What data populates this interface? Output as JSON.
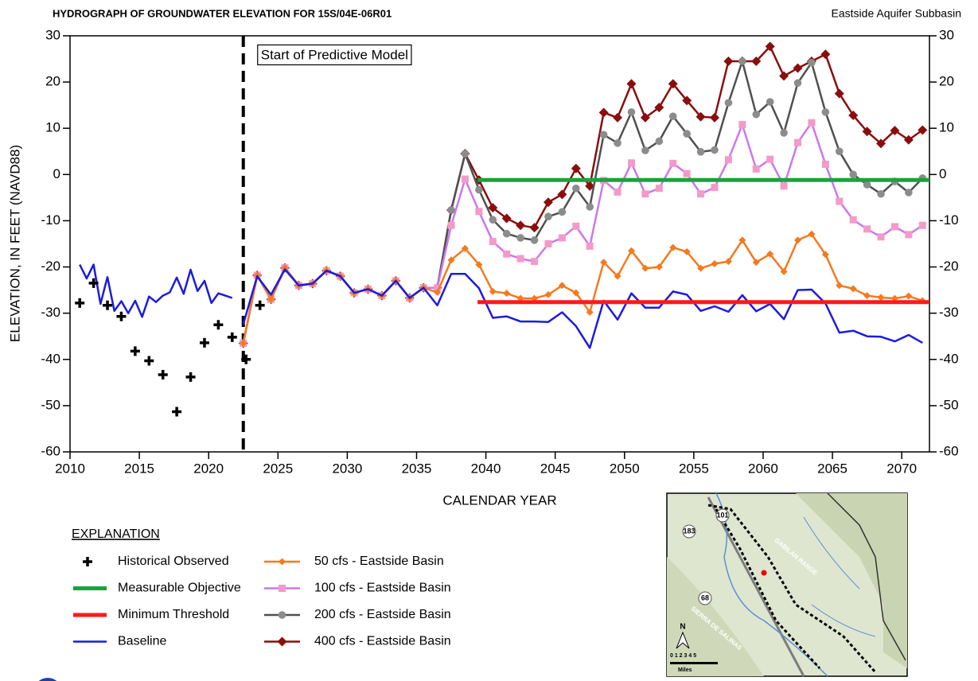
{
  "chart_data": {
    "type": "line",
    "title": "HYDROGRAPH OF GROUNDWATER ELEVATION FOR 15S/04E-06R01",
    "subtitle": "Eastside Aquifer Subbasin",
    "x_label": "CALENDAR YEAR",
    "y_label": "ELEVATION, IN FEET (NAVD88)",
    "xlim": [
      2010,
      2072
    ],
    "xticks": [
      2010,
      2015,
      2020,
      2025,
      2030,
      2035,
      2040,
      2045,
      2050,
      2055,
      2060,
      2065,
      2070
    ],
    "ylim": [
      -60,
      30
    ],
    "yticks": [
      -60,
      -50,
      -40,
      -30,
      -20,
      -10,
      0,
      10,
      20,
      30
    ],
    "y2lim": [
      -60,
      30
    ],
    "y2ticks": [
      -60,
      -50,
      -40,
      -30,
      -20,
      -10,
      0,
      10,
      20,
      30
    ],
    "grid": false,
    "legend_title": "EXPLANATION",
    "annotations": [
      {
        "text": "Start of Predictive Model",
        "x": 2022.5
      }
    ],
    "series": [
      {
        "name": "Historical Observed",
        "color": "#000000",
        "marker": "plus",
        "line_width": 0,
        "x": [
          2010.7,
          2011.7,
          2012.7,
          2013.7,
          2014.7,
          2015.7,
          2016.7,
          2017.7,
          2018.7,
          2019.7,
          2020.7,
          2021.7,
          2022.7,
          2023.7
        ],
        "values": [
          -27.8,
          -23.5,
          -28.3,
          -30.7,
          -38.2,
          -40.3,
          -43.3,
          -51.3,
          -43.8,
          -36.4,
          -32.5,
          -35.2,
          -40,
          -28.3
        ]
      },
      {
        "name": "Measurable Objective",
        "color": "#1aa33c",
        "marker": "none",
        "line_width": 5,
        "x": [
          2039.4,
          2072
        ],
        "values": [
          -1.2,
          -1.2
        ]
      },
      {
        "name": "Minimum Threshold",
        "color": "#ff1a1a",
        "marker": "none",
        "line_width": 5,
        "x": [
          2039.4,
          2072
        ],
        "values": [
          -27.6,
          -27.6
        ]
      },
      {
        "name": "Baseline",
        "color": "#1c1cde",
        "marker": "none",
        "line_width": 2.5,
        "x": [
          2010.7,
          2011.2,
          2011.7,
          2012.2,
          2012.7,
          2013.2,
          2013.7,
          2014.2,
          2014.7,
          2015.2,
          2015.7,
          2016.2,
          2016.7,
          2017.2,
          2017.7,
          2018.2,
          2018.7,
          2019.2,
          2019.7,
          2020.2,
          2020.7,
          2021.2,
          2021.7,
          2022.0,
          2022.5,
          2023.5,
          2024.5,
          2025.5,
          2026.5,
          2027.5,
          2028.5,
          2029.5,
          2030.5,
          2031.5,
          2032.5,
          2033.5,
          2034.5,
          2035.5,
          2036.5,
          2037.5,
          2038.5,
          2039.5,
          2040.5,
          2041.5,
          2042.5,
          2043.5,
          2044.5,
          2045.5,
          2046.5,
          2047.5,
          2048.5,
          2049.5,
          2050.5,
          2051.5,
          2052.5,
          2053.5,
          2054.5,
          2055.5,
          2056.5,
          2057.5,
          2058.5,
          2059.5,
          2060.5,
          2061.5,
          2062.5,
          2063.5,
          2064.5,
          2065.5,
          2066.5,
          2067.5,
          2068.5,
          2069.5,
          2070.5,
          2071.5
        ],
        "values": [
          -19.5,
          -22.5,
          -19.5,
          -28,
          -22.2,
          -29.5,
          -27.4,
          -30,
          -27.3,
          -30.8,
          -26.4,
          -27.6,
          -26.2,
          -25.5,
          -22.3,
          -25.8,
          -20.6,
          -25.2,
          -23,
          -27.8,
          -25.7,
          -26.2,
          -26.7,
          null,
          -32.4,
          -22,
          -26,
          -20.5,
          -24,
          -23.6,
          -20.8,
          -22,
          -25.6,
          -24.8,
          -26.2,
          -23,
          -26.7,
          -24.5,
          -28.3,
          -21.5,
          -21.5,
          -24.6,
          -31,
          -30.7,
          -31.8,
          -31.8,
          -31.9,
          -29.8,
          -32.8,
          -37.5,
          -27.3,
          -31.4,
          -25.7,
          -28.8,
          -28.8,
          -25.3,
          -26,
          -29.5,
          -28.5,
          -29.7,
          -26.1,
          -29.6,
          -28,
          -31.3,
          -25,
          -24.9,
          -27.9,
          -34.2,
          -33.8,
          -35,
          -35.1,
          -36.1,
          -34.7,
          -36.4
        ]
      },
      {
        "name": "50 cfs - Eastside Basin",
        "color": "#f47a1f",
        "marker": "diamond-small",
        "marker_color": "#f47a1f",
        "line_width": 2.5,
        "x": [
          2022.5,
          2023.5,
          2024.5,
          2025.5,
          2026.5,
          2027.5,
          2028.5,
          2029.5,
          2030.5,
          2031.5,
          2032.5,
          2033.5,
          2034.5,
          2035.5,
          2036.5,
          2037.5,
          2038.5,
          2039.5,
          2040.5,
          2041.5,
          2042.5,
          2043.5,
          2044.5,
          2045.5,
          2046.5,
          2047.5,
          2048.5,
          2049.5,
          2050.5,
          2051.5,
          2052.5,
          2053.5,
          2054.5,
          2055.5,
          2056.5,
          2057.5,
          2058.5,
          2059.5,
          2060.5,
          2061.5,
          2062.5,
          2063.5,
          2064.5,
          2065.5,
          2066.5,
          2067.5,
          2068.5,
          2069.5,
          2070.5,
          2071.5
        ],
        "values": [
          -36.5,
          -21.8,
          -27,
          -20.2,
          -24,
          -23.6,
          -20.8,
          -22,
          -25.6,
          -24.8,
          -26.2,
          -23,
          -26.7,
          -24.5,
          -25.5,
          -18.5,
          -16,
          -19.5,
          -25.3,
          -25.7,
          -26.8,
          -26.8,
          -26,
          -24,
          -25.6,
          -29.8,
          -19,
          -22,
          -16.5,
          -20.3,
          -20,
          -15.8,
          -16.7,
          -20.3,
          -19.3,
          -18.8,
          -14.2,
          -19,
          -17.2,
          -21,
          -14.2,
          -12.9,
          -17.3,
          -24,
          -24.7,
          -26.2,
          -26.6,
          -26.8,
          -26.3,
          -27.3
        ]
      },
      {
        "name": "100 cfs - Eastside Basin",
        "color": "#cc77ee",
        "marker": "square",
        "marker_color": "#f49ac8",
        "line_width": 2.5,
        "x": [
          2022.5,
          2023.5,
          2024.5,
          2025.5,
          2026.5,
          2027.5,
          2028.5,
          2029.5,
          2030.5,
          2031.5,
          2032.5,
          2033.5,
          2034.5,
          2035.5,
          2036.5,
          2037.5,
          2038.5,
          2039.5,
          2040.5,
          2041.5,
          2042.5,
          2043.5,
          2044.5,
          2045.5,
          2046.5,
          2047.5,
          2048.5,
          2049.5,
          2050.5,
          2051.5,
          2052.5,
          2053.5,
          2054.5,
          2055.5,
          2056.5,
          2057.5,
          2058.5,
          2059.5,
          2060.5,
          2061.5,
          2062.5,
          2063.5,
          2064.5,
          2065.5,
          2066.5,
          2067.5,
          2068.5,
          2069.5,
          2070.5,
          2071.5
        ],
        "values": [
          -36.5,
          -21.8,
          -27,
          -20.2,
          -24,
          -23.6,
          -20.8,
          -22,
          -25.6,
          -24.8,
          -26.2,
          -23,
          -26.7,
          -24.5,
          -24.5,
          -11,
          -1,
          -8,
          -14.5,
          -17.2,
          -18.2,
          -18.8,
          -15,
          -13.7,
          -11.2,
          -15.5,
          -1.3,
          -3.8,
          2.5,
          -4.2,
          -3,
          2.4,
          0.2,
          -4.2,
          -2.8,
          3.2,
          10.8,
          1.2,
          3.3,
          -2.5,
          6.9,
          11.2,
          2.2,
          -5.8,
          -9.8,
          -11.8,
          -13.5,
          -11.3,
          -13,
          -11
        ]
      },
      {
        "name": "200 cfs - Eastside Basin",
        "color": "#505050",
        "marker": "circle",
        "marker_color": "#8c8c8c",
        "line_width": 2.5,
        "x": [
          2022.5,
          2023.5,
          2024.5,
          2025.5,
          2026.5,
          2027.5,
          2028.5,
          2029.5,
          2030.5,
          2031.5,
          2032.5,
          2033.5,
          2034.5,
          2035.5,
          2036.5,
          2037.5,
          2038.5,
          2039.5,
          2040.5,
          2041.5,
          2042.5,
          2043.5,
          2044.5,
          2045.5,
          2046.5,
          2047.5,
          2048.5,
          2049.5,
          2050.5,
          2051.5,
          2052.5,
          2053.5,
          2054.5,
          2055.5,
          2056.5,
          2057.5,
          2058.5,
          2059.5,
          2060.5,
          2061.5,
          2062.5,
          2063.5,
          2064.5,
          2065.5,
          2066.5,
          2067.5,
          2068.5,
          2069.5,
          2070.5,
          2071.5
        ],
        "values": [
          -36.5,
          -21.8,
          -27,
          -20.2,
          -24,
          -23.6,
          -20.8,
          -22,
          -25.6,
          -24.8,
          -26.2,
          -23,
          -26.7,
          -24.5,
          -24.5,
          -7.7,
          4.5,
          -3.3,
          -9.8,
          -12.8,
          -13.7,
          -14.2,
          -9.1,
          -8.1,
          -3,
          -7,
          8.6,
          6.8,
          13.5,
          5.2,
          7.2,
          12.6,
          8.8,
          4.9,
          5.3,
          15.5,
          24.5,
          13,
          15.7,
          9,
          19.8,
          24.2,
          13.5,
          5,
          0,
          -2.2,
          -4.2,
          -1.5,
          -3.9,
          -0.8
        ]
      },
      {
        "name": "400 cfs - Eastside Basin",
        "color": "#8b0d0d",
        "marker": "diamond",
        "marker_color": "#8b0d0d",
        "line_width": 2.5,
        "x": [
          2022.5,
          2023.5,
          2024.5,
          2025.5,
          2026.5,
          2027.5,
          2028.5,
          2029.5,
          2030.5,
          2031.5,
          2032.5,
          2033.5,
          2034.5,
          2035.5,
          2036.5,
          2037.5,
          2038.5,
          2039.5,
          2040.5,
          2041.5,
          2042.5,
          2043.5,
          2044.5,
          2045.5,
          2046.5,
          2047.5,
          2048.5,
          2049.5,
          2050.5,
          2051.5,
          2052.5,
          2053.5,
          2054.5,
          2055.5,
          2056.5,
          2057.5,
          2058.5,
          2059.5,
          2060.5,
          2061.5,
          2062.5,
          2063.5,
          2064.5,
          2065.5,
          2066.5,
          2067.5,
          2068.5,
          2069.5,
          2070.5,
          2071.5
        ],
        "values": [
          -36.5,
          -21.8,
          -27,
          -20.2,
          -24,
          -23.6,
          -20.8,
          -22,
          -25.6,
          -24.8,
          -26.2,
          -23,
          -26.7,
          -24.5,
          -24.5,
          -7.7,
          4.5,
          -1.2,
          -7.2,
          -9.5,
          -11,
          -11.5,
          -6,
          -4.3,
          1.3,
          -2.5,
          13.4,
          12.3,
          19.6,
          12.3,
          14.5,
          19.6,
          16,
          12.5,
          12.3,
          24.5,
          24.5,
          24.5,
          27.7,
          21.3,
          23,
          24.5,
          26,
          17.5,
          12.8,
          9.3,
          6.7,
          9.5,
          7.5,
          9.6
        ]
      }
    ]
  },
  "inset_map": {
    "labels": [
      "101",
      "183",
      "68",
      "GABILAN RANGE",
      "SIERRA DE SALINAS",
      "N",
      "0 1 2 3 4 5",
      "Miles"
    ]
  }
}
